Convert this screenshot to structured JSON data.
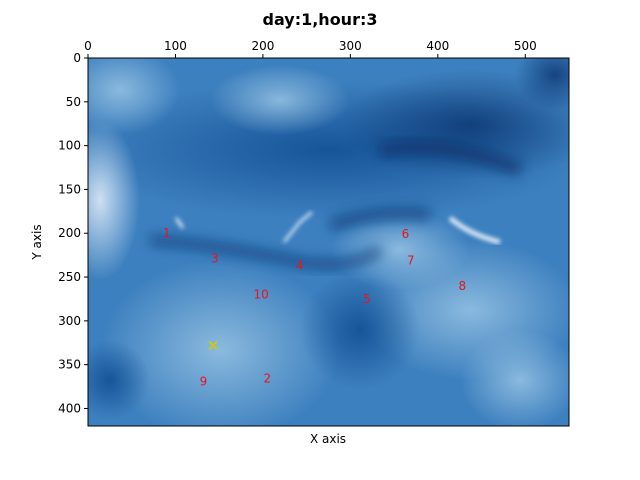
{
  "chart_data": {
    "type": "heatmap",
    "title": "day:1,hour:3",
    "xlabel": "X axis",
    "ylabel": "Y axis",
    "xlim": [
      0,
      550
    ],
    "ylim": [
      420,
      0
    ],
    "x_axis_position": "top",
    "y_inverted": true,
    "grid": false,
    "colormap": "Blues",
    "x_ticks": [
      0,
      100,
      200,
      300,
      400,
      500
    ],
    "y_ticks": [
      0,
      50,
      100,
      150,
      200,
      250,
      300,
      350,
      400
    ],
    "labeled_points": [
      {
        "label": "1",
        "x": 90,
        "y": 200
      },
      {
        "label": "2",
        "x": 205,
        "y": 366
      },
      {
        "label": "3",
        "x": 145,
        "y": 229
      },
      {
        "label": "4",
        "x": 242,
        "y": 237
      },
      {
        "label": "5",
        "x": 319,
        "y": 275
      },
      {
        "label": "6",
        "x": 363,
        "y": 201
      },
      {
        "label": "7",
        "x": 369,
        "y": 231
      },
      {
        "label": "8",
        "x": 428,
        "y": 260
      },
      {
        "label": "9",
        "x": 132,
        "y": 369
      },
      {
        "label": "10",
        "x": 198,
        "y": 270
      }
    ],
    "marker": {
      "type": "x",
      "x": 143,
      "y": 328,
      "color": "#c8c820"
    },
    "colors": {
      "label": "#e8141b",
      "marker": "#c8c820"
    }
  }
}
